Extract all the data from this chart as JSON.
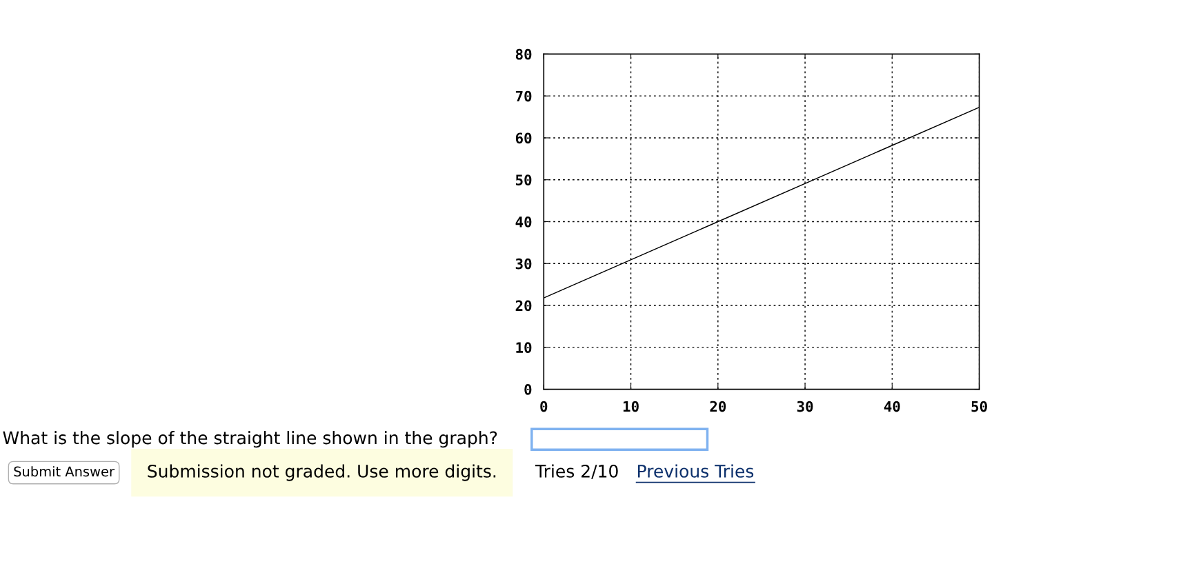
{
  "chart_data": {
    "type": "line",
    "x": [
      0,
      50
    ],
    "series": [
      {
        "color": "#000000",
        "values": [
          21.8,
          67.3
        ]
      }
    ],
    "xlim": [
      0,
      50
    ],
    "xticks": [
      0,
      10,
      20,
      30,
      40,
      50
    ],
    "ylim": [
      0,
      80
    ],
    "yticks": [
      0,
      10,
      20,
      30,
      40,
      50,
      60,
      70,
      80
    ],
    "grid": true,
    "line_style": "solid",
    "annotations": [
      "What is the slope of the straight line shown in the graph?",
      "Submit Answer",
      "Submission not graded. Use more digits.",
      "Tries 2/10",
      "Previous Tries"
    ]
  }
}
